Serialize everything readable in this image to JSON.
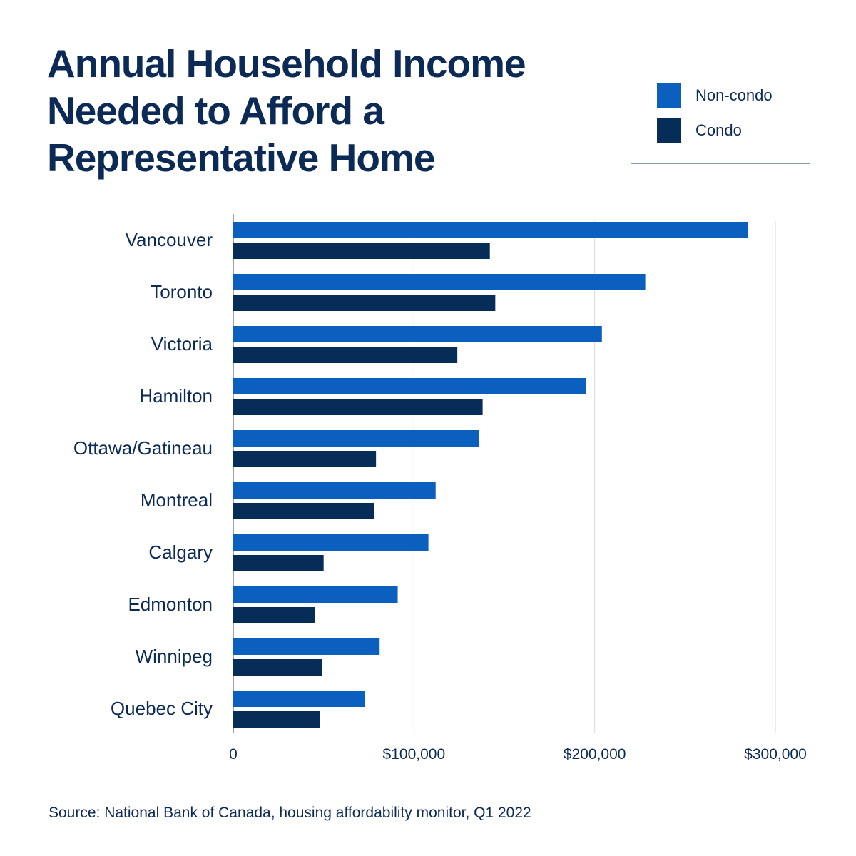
{
  "chart_data": {
    "type": "bar",
    "orientation": "horizontal",
    "title": "Annual Household Income Needed to Afford a Representative Home",
    "categories": [
      "Vancouver",
      "Toronto",
      "Victoria",
      "Hamilton",
      "Ottawa/Gatineau",
      "Montreal",
      "Calgary",
      "Edmonton",
      "Winnipeg",
      "Quebec City"
    ],
    "series": [
      {
        "name": "Non-condo",
        "color": "#0a5fbf",
        "values": [
          285000,
          228000,
          204000,
          195000,
          136000,
          112000,
          108000,
          91000,
          81000,
          73000
        ]
      },
      {
        "name": "Condo",
        "color": "#062d57",
        "values": [
          142000,
          145000,
          124000,
          138000,
          79000,
          78000,
          50000,
          45000,
          49000,
          48000
        ]
      }
    ],
    "xlim": [
      0,
      300000
    ],
    "xticks": [
      0,
      100000,
      200000,
      300000
    ],
    "xtick_labels": [
      "0",
      "$100,000",
      "$200,000",
      "$300,000"
    ],
    "grid": "vertical",
    "legend_position": "top-right",
    "source": "Source: National Bank of Canada, housing affordability monitor, Q1 2022"
  }
}
